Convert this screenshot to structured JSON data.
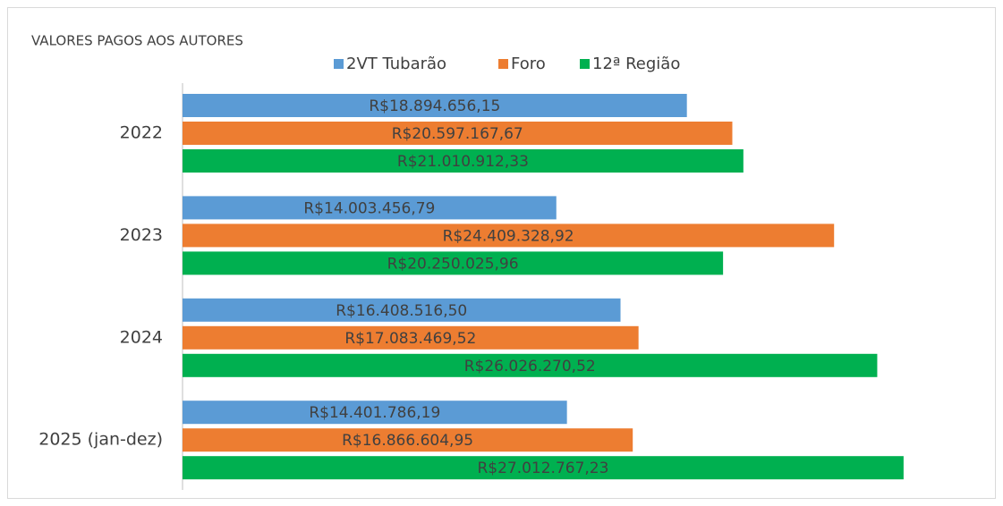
{
  "chart_data": {
    "type": "bar",
    "orientation": "horizontal",
    "title": "VALORES PAGOS AOS AUTORES",
    "categories": [
      "2022",
      "2023",
      "2024",
      "2025 (jan-dez)"
    ],
    "series": [
      {
        "name": "2VT Tubarão",
        "color": "#5b9bd5",
        "values": [
          18894656.15,
          14003456.79,
          16408516.5,
          14401786.19
        ],
        "value_labels": [
          "R$18.894.656,15",
          "R$14.003.456,79",
          "R$16.408.516,50",
          "R$14.401.786,19"
        ]
      },
      {
        "name": "Foro",
        "color": "#ed7d31",
        "values": [
          20597167.67,
          24409328.92,
          17083469.52,
          16866604.95
        ],
        "value_labels": [
          "R$20.597.167,67",
          "R$24.409.328,92",
          "R$17.083.469,52",
          "R$16.866.604,95"
        ]
      },
      {
        "name": "12ª Região",
        "color": "#00b050",
        "values": [
          21010912.33,
          20250025.96,
          26026270.52,
          27012767.23
        ],
        "value_labels": [
          "R$21.010.912,33",
          "R$20.250.025,96",
          "R$26.026.270,52",
          "R$27.012.767,23"
        ]
      }
    ],
    "xlim": [
      0,
      30000000
    ]
  }
}
